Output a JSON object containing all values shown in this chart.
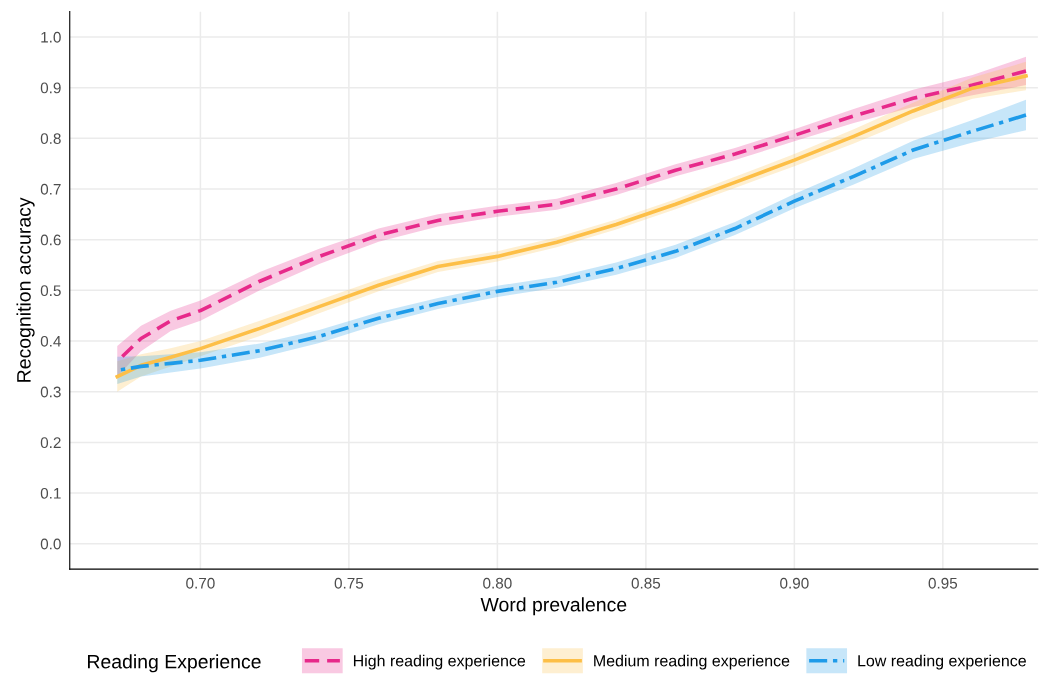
{
  "chart_data": {
    "type": "line",
    "xlabel": "Word prevalence",
    "ylabel": "Recognition accuracy",
    "legend_title": "Reading Experience",
    "legend": "bottom",
    "grid": true,
    "x": [
      0.672,
      0.68,
      0.69,
      0.7,
      0.72,
      0.74,
      0.76,
      0.78,
      0.8,
      0.82,
      0.84,
      0.86,
      0.88,
      0.9,
      0.92,
      0.94,
      0.96,
      0.978
    ],
    "xlim": [
      0.656,
      0.982
    ],
    "xticks": [
      {
        "value": 0.7,
        "label": "0.70"
      },
      {
        "value": 0.75,
        "label": "0.75"
      },
      {
        "value": 0.8,
        "label": "0.80"
      },
      {
        "value": 0.85,
        "label": "0.85"
      },
      {
        "value": 0.9,
        "label": "0.90"
      },
      {
        "value": 0.95,
        "label": "0.95"
      }
    ],
    "ylim": [
      -0.05,
      1.05
    ],
    "yticks": [
      {
        "value": 0,
        "label": "0.0"
      },
      {
        "value": 0.1,
        "label": "0.1"
      },
      {
        "value": 0.2,
        "label": "0.2"
      },
      {
        "value": 0.3,
        "label": "0.3"
      },
      {
        "value": 0.4,
        "label": "0.4"
      },
      {
        "value": 0.5,
        "label": "0.5"
      },
      {
        "value": 0.6,
        "label": "0.6"
      },
      {
        "value": 0.7,
        "label": "0.7"
      },
      {
        "value": 0.8,
        "label": "0.8"
      },
      {
        "value": 0.9,
        "label": "0.9"
      },
      {
        "value": 1,
        "label": "1.0"
      }
    ],
    "series": [
      {
        "name": "High reading experience",
        "color": "#e7298a",
        "line_style": "dashed",
        "values": [
          0.36,
          0.405,
          0.44,
          0.46,
          0.518,
          0.567,
          0.609,
          0.638,
          0.656,
          0.67,
          0.7,
          0.737,
          0.769,
          0.806,
          0.844,
          0.879,
          0.905,
          0.933
        ],
        "lower": [
          0.33,
          0.38,
          0.42,
          0.44,
          0.5,
          0.552,
          0.596,
          0.626,
          0.645,
          0.659,
          0.688,
          0.725,
          0.757,
          0.794,
          0.83,
          0.862,
          0.885,
          0.905
        ],
        "upper": [
          0.39,
          0.43,
          0.46,
          0.48,
          0.536,
          0.582,
          0.622,
          0.65,
          0.667,
          0.681,
          0.712,
          0.749,
          0.781,
          0.818,
          0.858,
          0.896,
          0.925,
          0.961
        ]
      },
      {
        "name": "Medium reading experience",
        "color": "#fdbf47",
        "line_style": "solid",
        "values": [
          0.33,
          0.352,
          0.368,
          0.385,
          0.425,
          0.468,
          0.51,
          0.547,
          0.567,
          0.595,
          0.63,
          0.67,
          0.713,
          0.757,
          0.804,
          0.854,
          0.899,
          0.923
        ],
        "lower": [
          0.3,
          0.33,
          0.35,
          0.37,
          0.41,
          0.455,
          0.498,
          0.536,
          0.557,
          0.585,
          0.62,
          0.66,
          0.702,
          0.745,
          0.79,
          0.838,
          0.878,
          0.895
        ],
        "upper": [
          0.36,
          0.374,
          0.386,
          0.4,
          0.44,
          0.481,
          0.522,
          0.558,
          0.577,
          0.605,
          0.64,
          0.68,
          0.724,
          0.769,
          0.818,
          0.87,
          0.92,
          0.951
        ]
      },
      {
        "name": "Low reading experience",
        "color": "#1e9be9",
        "line_style": "dashdot",
        "values": [
          0.342,
          0.35,
          0.356,
          0.362,
          0.381,
          0.409,
          0.445,
          0.474,
          0.498,
          0.516,
          0.543,
          0.577,
          0.622,
          0.676,
          0.725,
          0.777,
          0.814,
          0.846
        ],
        "lower": [
          0.315,
          0.33,
          0.338,
          0.346,
          0.367,
          0.396,
          0.433,
          0.463,
          0.487,
          0.505,
          0.531,
          0.564,
          0.609,
          0.662,
          0.709,
          0.759,
          0.792,
          0.816
        ],
        "upper": [
          0.369,
          0.37,
          0.374,
          0.378,
          0.395,
          0.422,
          0.457,
          0.485,
          0.509,
          0.527,
          0.555,
          0.59,
          0.635,
          0.69,
          0.741,
          0.795,
          0.836,
          0.876
        ]
      }
    ]
  }
}
